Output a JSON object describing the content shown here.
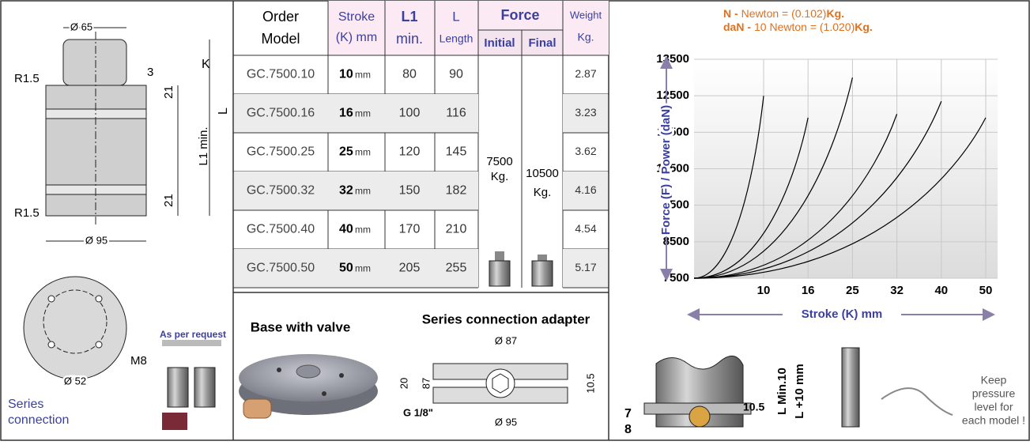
{
  "left_drawing": {
    "labels": [
      "Ø 65",
      "K",
      "R1.5",
      "3",
      "21",
      "L",
      "L1 min.",
      "R1.5",
      "21",
      "Ø 95"
    ],
    "flange_labels": [
      "M8",
      "Ø 52"
    ],
    "request_note": "As per request",
    "series_title": [
      "Series",
      "connection"
    ]
  },
  "table": {
    "headers": {
      "model": [
        "Order",
        "Model"
      ],
      "stroke": [
        "Stroke",
        "(K) mm"
      ],
      "l1": [
        "L1",
        "min."
      ],
      "l": [
        "L",
        "Length"
      ],
      "force": "Force",
      "initial": "Initial",
      "final": "Final",
      "weight": [
        "Weight",
        "Kg."
      ]
    },
    "rows": [
      [
        "GC.7500.10",
        "10",
        "mm",
        "80",
        "90",
        "2.87"
      ],
      [
        "GC.7500.16",
        "16",
        "mm",
        "100",
        "116",
        "3.23"
      ],
      [
        "GC.7500.25",
        "25",
        "mm",
        "120",
        "145",
        "3.62"
      ],
      [
        "GC.7500.32",
        "32",
        "mm",
        "150",
        "182",
        "4.16"
      ],
      [
        "GC.7500.40",
        "40",
        "mm",
        "170",
        "210",
        "4.54"
      ],
      [
        "GC.7500.50",
        "50",
        "mm",
        "205",
        "255",
        "5.17"
      ]
    ],
    "force_initial": [
      "7500",
      "Kg."
    ],
    "force_final": [
      "10500",
      "Kg."
    ]
  },
  "accessories": {
    "base_title": "Base with valve",
    "adapter_title": "Series connection adapter",
    "adapter_labels": [
      "Ø 87",
      "20",
      "87",
      "10.5",
      "G 1/8\"",
      "Ø 95"
    ]
  },
  "install": {
    "labels": [
      "7",
      "8",
      "10.5"
    ],
    "dims": [
      "L Min.10",
      "L +10 mm"
    ],
    "note": [
      "Keep",
      "pressure",
      "level for",
      "each model !"
    ]
  },
  "chart_data": {
    "type": "curve",
    "units": [
      [
        "N -",
        "Newton   = (0.102)",
        "Kg."
      ],
      [
        "daN -",
        "10 Newton = (1.020)",
        "Kg."
      ]
    ],
    "y_label": "Force (F) / Power  (daN)",
    "x_label": "Stroke (K) mm",
    "xticks": [
      10,
      16,
      25,
      32,
      40,
      50
    ],
    "end_values": [
      12500,
      11900,
      13000,
      12000,
      12350,
      11900
    ],
    "ylim": [
      7500,
      13500
    ],
    "yticks": [
      7500,
      8500,
      9500,
      10500,
      11500,
      12500,
      13500
    ],
    "grid": true,
    "color": "#000000"
  }
}
